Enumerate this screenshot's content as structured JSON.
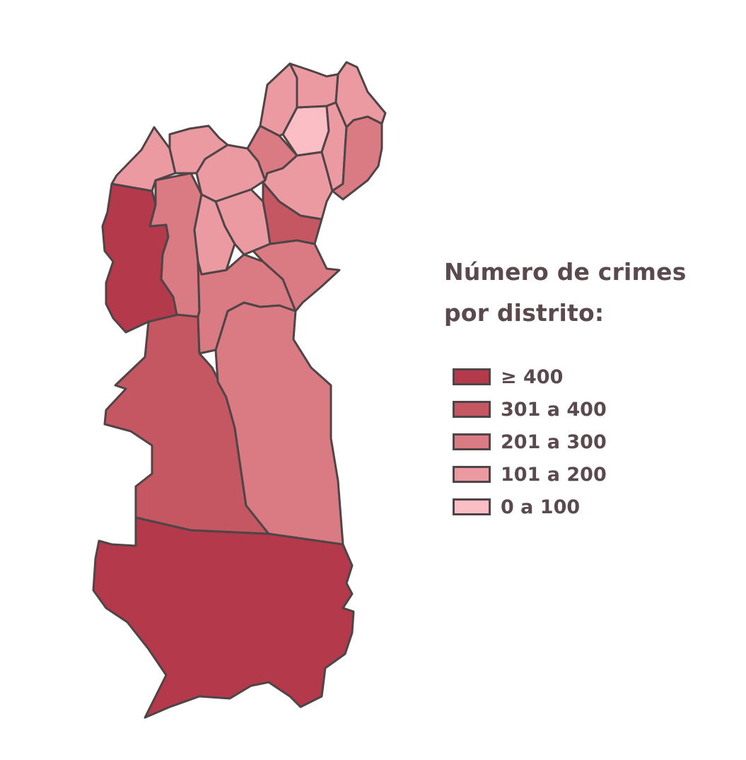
{
  "legend": {
    "title_line1": "Número de crimes",
    "title_line2": "por distrito:",
    "items": [
      {
        "label": "≥ 400",
        "color": "#b4394b"
      },
      {
        "label": "301 a 400",
        "color": "#c55763"
      },
      {
        "label": "201 a 300",
        "color": "#da7a83"
      },
      {
        "label": "101 a 200",
        "color": "#ec9aa1"
      },
      {
        "label": "0 a 100",
        "color": "#fbbec4"
      }
    ]
  },
  "map": {
    "border_color": "#4f4446",
    "classes": {
      "c400": "#b4394b",
      "c301": "#c55763",
      "c201": "#da7a83",
      "c101": "#ec9aa1",
      "c0": "#fbbec4"
    }
  }
}
